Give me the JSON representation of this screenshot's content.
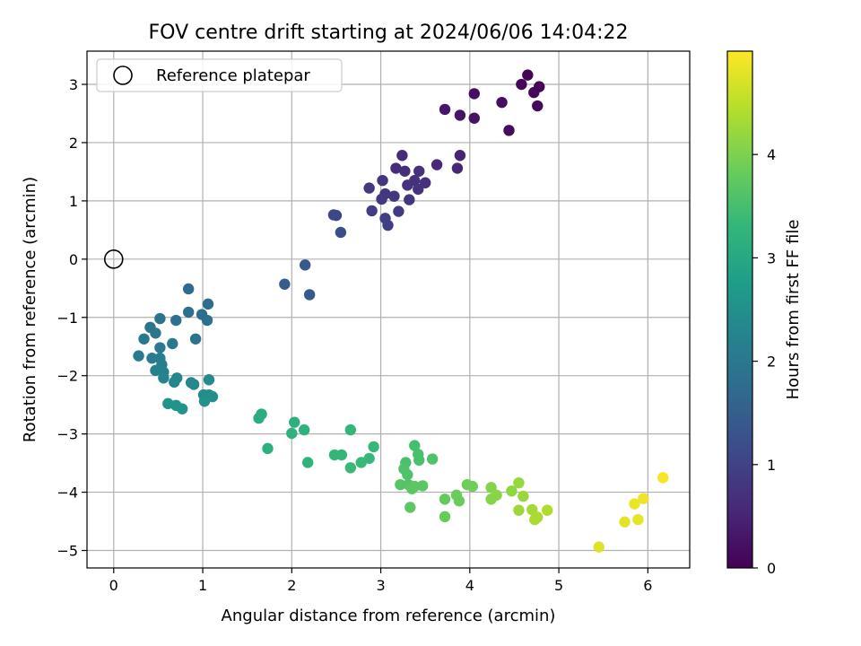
{
  "chart_data": {
    "type": "scatter",
    "title": "FOV centre drift starting at 2024/06/06 14:04:22",
    "xlabel": "Angular distance from reference (arcmin)",
    "ylabel": "Rotation from reference (arcmin)",
    "xlim": [
      -0.3,
      6.47
    ],
    "ylim": [
      -5.3,
      3.57
    ],
    "xticks": [
      "0",
      "1",
      "2",
      "3",
      "4",
      "5",
      "6"
    ],
    "xtick_values": [
      0,
      1,
      2,
      3,
      4,
      5,
      6
    ],
    "yticks": [
      "−5",
      "−4",
      "−3",
      "−2",
      "−1",
      "0",
      "1",
      "2",
      "3"
    ],
    "ytick_values": [
      -5,
      -4,
      -3,
      -2,
      -1,
      0,
      1,
      2,
      3
    ],
    "grid": true,
    "legend": {
      "placement": "top-left",
      "entries": [
        "Reference platepar"
      ]
    },
    "colorbar": {
      "label": "Hours from first FF file",
      "range": [
        0,
        5
      ],
      "ticks": [
        "0",
        "1",
        "2",
        "3",
        "4"
      ],
      "tick_values": [
        0,
        1,
        2,
        3,
        4
      ],
      "colormap": "viridis",
      "stops": [
        "#440154",
        "#482878",
        "#3e4989",
        "#31688e",
        "#26828e",
        "#1f9e89",
        "#35b779",
        "#6ece58",
        "#b5de2b",
        "#fde725"
      ]
    },
    "reference_point": {
      "name": "Reference platepar",
      "x": 0,
      "y": 0
    },
    "points": [
      {
        "x": 4.65,
        "y": 3.16,
        "c": 0.05
      },
      {
        "x": 4.58,
        "y": 3.0,
        "c": 0.08
      },
      {
        "x": 4.78,
        "y": 2.96,
        "c": 0.06
      },
      {
        "x": 4.72,
        "y": 2.86,
        "c": 0.1
      },
      {
        "x": 4.76,
        "y": 2.63,
        "c": 0.12
      },
      {
        "x": 4.05,
        "y": 2.84,
        "c": 0.2
      },
      {
        "x": 4.36,
        "y": 2.69,
        "c": 0.18
      },
      {
        "x": 3.72,
        "y": 2.57,
        "c": 0.3
      },
      {
        "x": 3.89,
        "y": 2.47,
        "c": 0.28
      },
      {
        "x": 4.05,
        "y": 2.42,
        "c": 0.26
      },
      {
        "x": 4.44,
        "y": 2.21,
        "c": 0.16
      },
      {
        "x": 3.24,
        "y": 1.78,
        "c": 0.6
      },
      {
        "x": 3.89,
        "y": 1.78,
        "c": 0.5
      },
      {
        "x": 3.63,
        "y": 1.62,
        "c": 0.55
      },
      {
        "x": 3.17,
        "y": 1.56,
        "c": 0.62
      },
      {
        "x": 3.86,
        "y": 1.56,
        "c": 0.52
      },
      {
        "x": 3.27,
        "y": 1.51,
        "c": 0.65
      },
      {
        "x": 3.43,
        "y": 1.51,
        "c": 0.7
      },
      {
        "x": 3.02,
        "y": 1.35,
        "c": 0.75
      },
      {
        "x": 3.38,
        "y": 1.35,
        "c": 0.7
      },
      {
        "x": 3.5,
        "y": 1.31,
        "c": 0.68
      },
      {
        "x": 3.3,
        "y": 1.27,
        "c": 0.72
      },
      {
        "x": 3.42,
        "y": 1.2,
        "c": 0.74
      },
      {
        "x": 2.87,
        "y": 1.22,
        "c": 0.85
      },
      {
        "x": 3.05,
        "y": 1.12,
        "c": 0.8
      },
      {
        "x": 3.15,
        "y": 1.08,
        "c": 0.82
      },
      {
        "x": 3.01,
        "y": 1.03,
        "c": 0.85
      },
      {
        "x": 3.32,
        "y": 1.02,
        "c": 0.78
      },
      {
        "x": 2.9,
        "y": 0.83,
        "c": 0.9
      },
      {
        "x": 3.2,
        "y": 0.82,
        "c": 0.88
      },
      {
        "x": 3.05,
        "y": 0.7,
        "c": 0.92
      },
      {
        "x": 3.08,
        "y": 0.58,
        "c": 0.95
      },
      {
        "x": 2.47,
        "y": 0.76,
        "c": 1.1
      },
      {
        "x": 2.5,
        "y": 0.75,
        "c": 1.1
      },
      {
        "x": 2.55,
        "y": 0.46,
        "c": 1.2
      },
      {
        "x": 2.15,
        "y": -0.1,
        "c": 1.4
      },
      {
        "x": 1.92,
        "y": -0.43,
        "c": 1.45
      },
      {
        "x": 2.2,
        "y": -0.61,
        "c": 1.42
      },
      {
        "x": 0.84,
        "y": -0.51,
        "c": 1.7
      },
      {
        "x": 1.06,
        "y": -0.77,
        "c": 1.75
      },
      {
        "x": 0.84,
        "y": -0.91,
        "c": 1.8
      },
      {
        "x": 0.99,
        "y": -0.95,
        "c": 1.78
      },
      {
        "x": 1.05,
        "y": -1.05,
        "c": 1.82
      },
      {
        "x": 0.7,
        "y": -1.05,
        "c": 1.85
      },
      {
        "x": 0.52,
        "y": -1.02,
        "c": 1.9
      },
      {
        "x": 0.41,
        "y": -1.17,
        "c": 1.95
      },
      {
        "x": 0.47,
        "y": -1.27,
        "c": 1.95
      },
      {
        "x": 0.34,
        "y": -1.37,
        "c": 2.0
      },
      {
        "x": 0.92,
        "y": -1.37,
        "c": 1.9
      },
      {
        "x": 0.66,
        "y": -1.45,
        "c": 2.0
      },
      {
        "x": 0.52,
        "y": -1.52,
        "c": 2.05
      },
      {
        "x": 0.28,
        "y": -1.66,
        "c": 2.1
      },
      {
        "x": 0.43,
        "y": -1.7,
        "c": 2.1
      },
      {
        "x": 0.52,
        "y": -1.7,
        "c": 2.12
      },
      {
        "x": 0.54,
        "y": -1.81,
        "c": 2.15
      },
      {
        "x": 0.47,
        "y": -1.91,
        "c": 2.2
      },
      {
        "x": 0.56,
        "y": -1.94,
        "c": 2.2
      },
      {
        "x": 0.56,
        "y": -2.04,
        "c": 2.25
      },
      {
        "x": 0.71,
        "y": -2.04,
        "c": 2.3
      },
      {
        "x": 0.68,
        "y": -2.11,
        "c": 2.3
      },
      {
        "x": 0.87,
        "y": -2.12,
        "c": 2.35
      },
      {
        "x": 0.9,
        "y": -2.15,
        "c": 2.35
      },
      {
        "x": 1.07,
        "y": -2.07,
        "c": 2.4
      },
      {
        "x": 1.01,
        "y": -2.33,
        "c": 2.45
      },
      {
        "x": 1.07,
        "y": -2.33,
        "c": 2.45
      },
      {
        "x": 1.11,
        "y": -2.36,
        "c": 2.48
      },
      {
        "x": 1.02,
        "y": -2.44,
        "c": 2.5
      },
      {
        "x": 0.61,
        "y": -2.48,
        "c": 2.55
      },
      {
        "x": 0.7,
        "y": -2.51,
        "c": 2.55
      },
      {
        "x": 0.77,
        "y": -2.57,
        "c": 2.6
      },
      {
        "x": 1.66,
        "y": -2.66,
        "c": 3.1
      },
      {
        "x": 1.63,
        "y": -2.73,
        "c": 3.1
      },
      {
        "x": 2.03,
        "y": -2.8,
        "c": 3.15
      },
      {
        "x": 2.14,
        "y": -2.93,
        "c": 3.2
      },
      {
        "x": 2.0,
        "y": -2.99,
        "c": 3.2
      },
      {
        "x": 1.73,
        "y": -3.25,
        "c": 3.15
      },
      {
        "x": 2.18,
        "y": -3.49,
        "c": 3.25
      },
      {
        "x": 2.66,
        "y": -2.93,
        "c": 3.3
      },
      {
        "x": 2.92,
        "y": -3.22,
        "c": 3.35
      },
      {
        "x": 2.48,
        "y": -3.36,
        "c": 3.3
      },
      {
        "x": 2.56,
        "y": -3.36,
        "c": 3.3
      },
      {
        "x": 2.87,
        "y": -3.42,
        "c": 3.35
      },
      {
        "x": 2.78,
        "y": -3.49,
        "c": 3.38
      },
      {
        "x": 2.66,
        "y": -3.58,
        "c": 3.38
      },
      {
        "x": 3.38,
        "y": -3.2,
        "c": 3.5
      },
      {
        "x": 3.42,
        "y": -3.35,
        "c": 3.55
      },
      {
        "x": 3.28,
        "y": -3.49,
        "c": 3.55
      },
      {
        "x": 3.43,
        "y": -3.45,
        "c": 3.55
      },
      {
        "x": 3.58,
        "y": -3.43,
        "c": 3.6
      },
      {
        "x": 3.26,
        "y": -3.6,
        "c": 3.6
      },
      {
        "x": 3.3,
        "y": -3.7,
        "c": 3.6
      },
      {
        "x": 3.22,
        "y": -3.87,
        "c": 3.65
      },
      {
        "x": 3.31,
        "y": -3.87,
        "c": 3.65
      },
      {
        "x": 3.38,
        "y": -3.9,
        "c": 3.7
      },
      {
        "x": 3.47,
        "y": -3.89,
        "c": 3.7
      },
      {
        "x": 3.35,
        "y": -3.94,
        "c": 3.7
      },
      {
        "x": 3.33,
        "y": -4.26,
        "c": 3.72
      },
      {
        "x": 3.72,
        "y": -4.12,
        "c": 3.8
      },
      {
        "x": 3.72,
        "y": -4.42,
        "c": 3.82
      },
      {
        "x": 3.85,
        "y": -4.05,
        "c": 3.85
      },
      {
        "x": 3.88,
        "y": -4.15,
        "c": 3.85
      },
      {
        "x": 3.97,
        "y": -3.87,
        "c": 3.9
      },
      {
        "x": 4.03,
        "y": -3.9,
        "c": 3.9
      },
      {
        "x": 4.24,
        "y": -3.92,
        "c": 4.05
      },
      {
        "x": 4.3,
        "y": -4.05,
        "c": 4.1
      },
      {
        "x": 4.24,
        "y": -4.12,
        "c": 4.08
      },
      {
        "x": 4.47,
        "y": -3.98,
        "c": 4.15
      },
      {
        "x": 4.55,
        "y": -3.84,
        "c": 4.2
      },
      {
        "x": 4.6,
        "y": -4.07,
        "c": 4.22
      },
      {
        "x": 4.55,
        "y": -4.31,
        "c": 4.25
      },
      {
        "x": 4.7,
        "y": -4.3,
        "c": 4.3
      },
      {
        "x": 4.73,
        "y": -4.47,
        "c": 4.35
      },
      {
        "x": 4.76,
        "y": -4.43,
        "c": 4.35
      },
      {
        "x": 4.87,
        "y": -4.31,
        "c": 4.4
      },
      {
        "x": 5.45,
        "y": -4.94,
        "c": 4.75
      },
      {
        "x": 5.74,
        "y": -4.51,
        "c": 4.8
      },
      {
        "x": 5.89,
        "y": -4.47,
        "c": 4.82
      },
      {
        "x": 5.85,
        "y": -4.2,
        "c": 4.85
      },
      {
        "x": 5.95,
        "y": -4.11,
        "c": 4.88
      },
      {
        "x": 6.17,
        "y": -3.75,
        "c": 4.95
      }
    ]
  }
}
